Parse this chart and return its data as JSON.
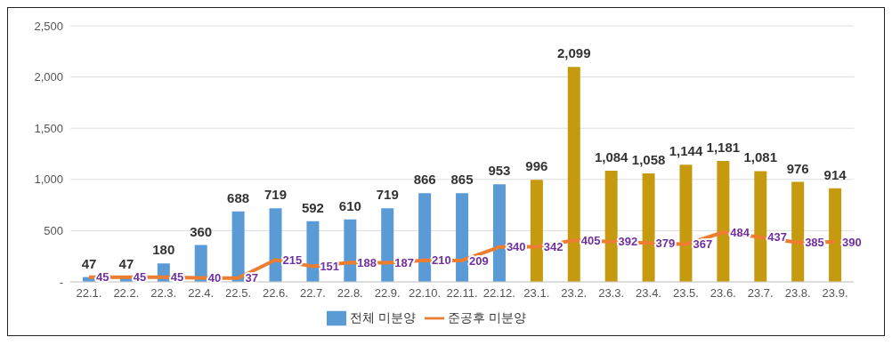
{
  "chart_data": {
    "type": "bar",
    "categories": [
      "22.1.",
      "22.2.",
      "22.3.",
      "22.4.",
      "22.5.",
      "22.6.",
      "22.7.",
      "22.8.",
      "22.9.",
      "22.10.",
      "22.11.",
      "22.12.",
      "23.1.",
      "23.2.",
      "23.3.",
      "23.4.",
      "23.5.",
      "23.6.",
      "23.7.",
      "23.8.",
      "23.9."
    ],
    "series": [
      {
        "name": "전체 미분양",
        "color": "#5b9bd5",
        "colors": [
          "#5b9bd5",
          "#5b9bd5",
          "#5b9bd5",
          "#5b9bd5",
          "#5b9bd5",
          "#5b9bd5",
          "#5b9bd5",
          "#5b9bd5",
          "#5b9bd5",
          "#5b9bd5",
          "#5b9bd5",
          "#5b9bd5",
          "#c59a0e",
          "#c59a0e",
          "#c59a0e",
          "#c59a0e",
          "#c59a0e",
          "#c59a0e",
          "#c59a0e",
          "#c59a0e",
          "#c59a0e"
        ],
        "values": [
          47,
          47,
          180,
          360,
          688,
          719,
          592,
          610,
          719,
          866,
          865,
          953,
          996,
          2099,
          1084,
          1058,
          1144,
          1181,
          1081,
          976,
          914
        ],
        "value_labels": [
          "47",
          "47",
          "180",
          "360",
          "688",
          "719",
          "592",
          "610",
          "719",
          "866",
          "865",
          "953",
          "996",
          "2,099",
          "1,084",
          "1,058",
          "1,144",
          "1,181",
          "1,081",
          "976",
          "914"
        ]
      },
      {
        "name": "준공후 미분양",
        "type": "line",
        "color": "#ed7d31",
        "values": [
          45,
          45,
          45,
          40,
          37,
          215,
          151,
          188,
          187,
          210,
          209,
          340,
          342,
          405,
          392,
          379,
          367,
          484,
          437,
          385,
          390
        ],
        "value_labels": [
          "45",
          "45",
          "45",
          "40",
          "37",
          "215",
          "151",
          "188",
          "187",
          "210",
          "209",
          "340",
          "342",
          "405",
          "392",
          "379",
          "367",
          "484",
          "437",
          "385",
          "390"
        ]
      }
    ],
    "ylim": [
      0,
      2500
    ],
    "yticks": [
      {
        "value": 0,
        "label": "-"
      },
      500,
      {
        "value": 1000,
        "label": "1,000"
      },
      {
        "value": 1500,
        "label": "1,500"
      },
      {
        "value": 2000,
        "label": "2,000"
      },
      {
        "value": 2500,
        "label": "2,500"
      }
    ],
    "grid": "y",
    "legend": "bottom",
    "marker": "none"
  }
}
